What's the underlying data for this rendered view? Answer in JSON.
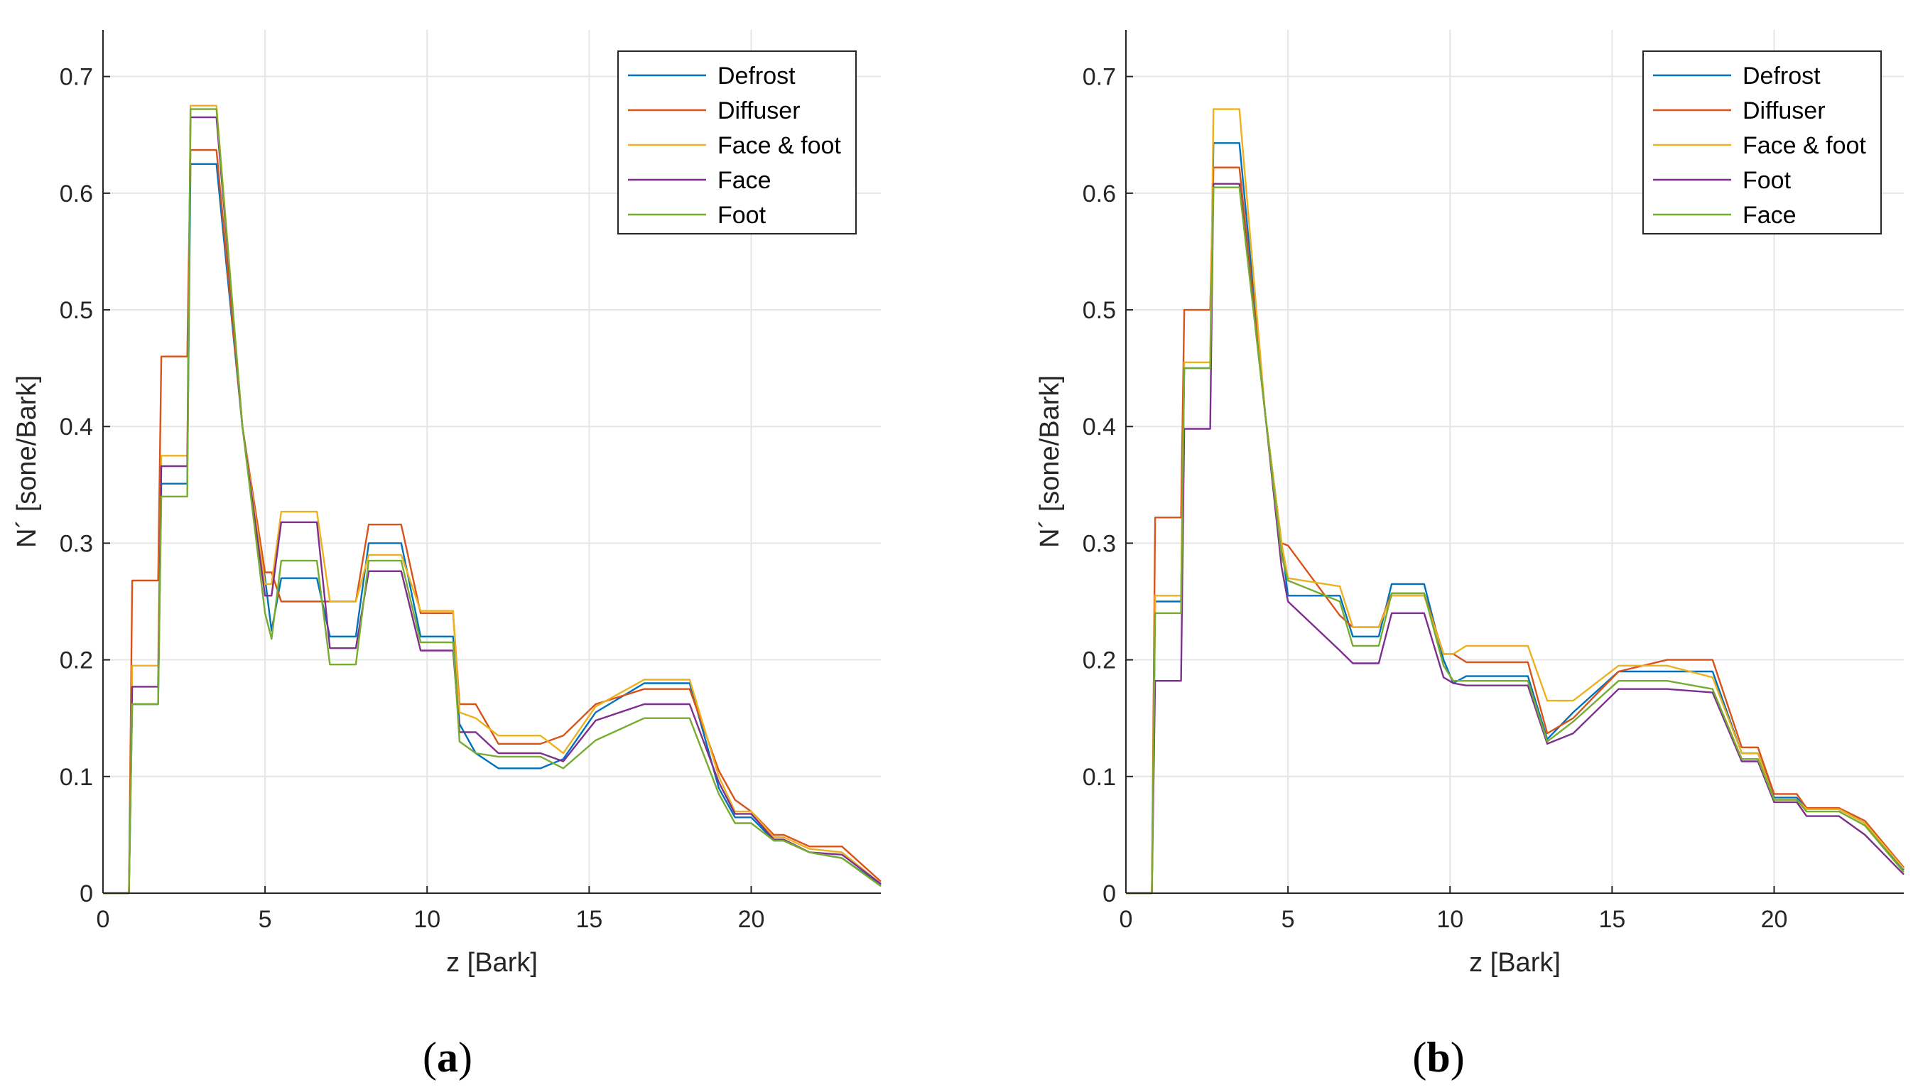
{
  "chart_data": [
    {
      "id": "a",
      "type": "line",
      "panel_label": "a",
      "xlabel": "z [Bark]",
      "ylabel": "N´ [sone/Bark]",
      "xlim": [
        0,
        24
      ],
      "ylim": [
        0,
        0.74
      ],
      "xticks": [
        "0",
        "5",
        "10",
        "15",
        "20"
      ],
      "yticks": [
        "0",
        "0.1",
        "0.2",
        "0.3",
        "0.4",
        "0.5",
        "0.6",
        "0.7"
      ],
      "grid": true,
      "legend_position": "top-right",
      "series": [
        {
          "name": "Defrost",
          "color": "#0072BD",
          "x": [
            0,
            0.8,
            0.9,
            1.7,
            1.8,
            2.6,
            2.7,
            3.5,
            4.3,
            5.0,
            5.2,
            5.5,
            6.6,
            7.0,
            7.8,
            8.2,
            9.2,
            9.8,
            10.8,
            11.0,
            11.5,
            12.2,
            13.5,
            14.2,
            15.2,
            16.7,
            18.1,
            19.0,
            19.5,
            20.0,
            20.7,
            21.0,
            21.8,
            22.8,
            24
          ],
          "y": [
            0,
            0,
            0.162,
            0.162,
            0.351,
            0.351,
            0.625,
            0.625,
            0.4,
            0.27,
            0.225,
            0.27,
            0.27,
            0.22,
            0.22,
            0.3,
            0.3,
            0.22,
            0.22,
            0.145,
            0.12,
            0.107,
            0.107,
            0.115,
            0.155,
            0.18,
            0.18,
            0.09,
            0.065,
            0.065,
            0.045,
            0.045,
            0.035,
            0.03,
            0.007
          ]
        },
        {
          "name": "Diffuser",
          "color": "#D95319",
          "x": [
            0,
            0.8,
            0.9,
            1.7,
            1.8,
            2.6,
            2.7,
            3.5,
            4.3,
            5.0,
            5.2,
            5.5,
            6.6,
            7.0,
            7.8,
            8.2,
            9.2,
            9.8,
            10.8,
            11.0,
            11.5,
            12.2,
            13.5,
            14.2,
            15.2,
            16.7,
            18.1,
            19.0,
            19.5,
            20.0,
            20.7,
            21.0,
            21.8,
            22.8,
            24
          ],
          "y": [
            0,
            0,
            0.268,
            0.268,
            0.46,
            0.46,
            0.637,
            0.637,
            0.4,
            0.275,
            0.275,
            0.25,
            0.25,
            0.25,
            0.25,
            0.316,
            0.316,
            0.24,
            0.24,
            0.162,
            0.162,
            0.128,
            0.128,
            0.135,
            0.162,
            0.175,
            0.175,
            0.105,
            0.08,
            0.07,
            0.05,
            0.05,
            0.04,
            0.04,
            0.01
          ]
        },
        {
          "name": "Face & foot",
          "color": "#EDB120",
          "x": [
            0,
            0.8,
            0.9,
            1.7,
            1.8,
            2.6,
            2.7,
            3.5,
            4.3,
            5.0,
            5.2,
            5.5,
            6.6,
            7.0,
            7.8,
            8.2,
            9.2,
            9.8,
            10.8,
            11.0,
            11.5,
            12.2,
            13.5,
            14.2,
            15.2,
            16.7,
            18.1,
            19.0,
            19.5,
            20.0,
            20.7,
            21.0,
            21.8,
            22.8,
            24
          ],
          "y": [
            0,
            0,
            0.195,
            0.195,
            0.375,
            0.375,
            0.675,
            0.675,
            0.4,
            0.265,
            0.265,
            0.327,
            0.327,
            0.25,
            0.25,
            0.29,
            0.29,
            0.242,
            0.242,
            0.155,
            0.15,
            0.135,
            0.135,
            0.12,
            0.16,
            0.183,
            0.183,
            0.1,
            0.07,
            0.07,
            0.048,
            0.048,
            0.038,
            0.035,
            0.008
          ]
        },
        {
          "name": "Face",
          "color": "#7E2F8E",
          "x": [
            0,
            0.8,
            0.9,
            1.7,
            1.8,
            2.6,
            2.7,
            3.5,
            4.3,
            5.0,
            5.2,
            5.5,
            6.6,
            7.0,
            7.8,
            8.2,
            9.2,
            9.8,
            10.8,
            11.0,
            11.5,
            12.2,
            13.5,
            14.2,
            15.2,
            16.7,
            18.1,
            19.0,
            19.5,
            20.0,
            20.7,
            21.0,
            21.8,
            22.8,
            24
          ],
          "y": [
            0,
            0,
            0.177,
            0.177,
            0.366,
            0.366,
            0.665,
            0.665,
            0.4,
            0.255,
            0.255,
            0.318,
            0.318,
            0.21,
            0.21,
            0.276,
            0.276,
            0.208,
            0.208,
            0.138,
            0.138,
            0.12,
            0.12,
            0.113,
            0.148,
            0.162,
            0.162,
            0.095,
            0.068,
            0.068,
            0.046,
            0.046,
            0.035,
            0.033,
            0.008
          ]
        },
        {
          "name": "Foot",
          "color": "#77AC30",
          "x": [
            0,
            0.8,
            0.9,
            1.7,
            1.8,
            2.6,
            2.7,
            3.5,
            4.3,
            5.0,
            5.2,
            5.5,
            6.6,
            7.0,
            7.8,
            8.2,
            9.2,
            9.8,
            10.8,
            11.0,
            11.5,
            12.2,
            13.5,
            14.2,
            15.2,
            16.7,
            18.1,
            19.0,
            19.5,
            20.0,
            20.7,
            21.0,
            21.8,
            22.8,
            24
          ],
          "y": [
            0,
            0,
            0.162,
            0.162,
            0.34,
            0.34,
            0.672,
            0.672,
            0.4,
            0.24,
            0.218,
            0.285,
            0.285,
            0.196,
            0.196,
            0.285,
            0.285,
            0.215,
            0.215,
            0.13,
            0.12,
            0.117,
            0.117,
            0.107,
            0.131,
            0.15,
            0.15,
            0.085,
            0.06,
            0.06,
            0.045,
            0.045,
            0.035,
            0.03,
            0.006
          ]
        }
      ]
    },
    {
      "id": "b",
      "type": "line",
      "panel_label": "b",
      "xlabel": "z [Bark]",
      "ylabel": "N´ [sone/Bark]",
      "xlim": [
        0,
        24
      ],
      "ylim": [
        0,
        0.74
      ],
      "xticks": [
        "0",
        "5",
        "10",
        "15",
        "20"
      ],
      "yticks": [
        "0",
        "0.1",
        "0.2",
        "0.3",
        "0.4",
        "0.5",
        "0.6",
        "0.7"
      ],
      "grid": true,
      "legend_position": "top-right",
      "series": [
        {
          "name": "Defrost",
          "color": "#0072BD",
          "x": [
            0,
            0.8,
            0.9,
            1.7,
            1.8,
            2.6,
            2.7,
            3.5,
            4.3,
            4.8,
            5.0,
            6.6,
            7.0,
            7.8,
            8.2,
            9.2,
            9.8,
            10.1,
            10.5,
            12.4,
            13.0,
            13.8,
            15.2,
            16.7,
            18.1,
            19.0,
            19.5,
            20.0,
            20.7,
            21.0,
            22.0,
            22.8,
            24
          ],
          "y": [
            0,
            0,
            0.25,
            0.25,
            0.45,
            0.45,
            0.643,
            0.643,
            0.41,
            0.3,
            0.255,
            0.255,
            0.22,
            0.22,
            0.265,
            0.265,
            0.2,
            0.18,
            0.186,
            0.186,
            0.132,
            0.155,
            0.19,
            0.19,
            0.19,
            0.12,
            0.12,
            0.082,
            0.082,
            0.072,
            0.072,
            0.06,
            0.02
          ]
        },
        {
          "name": "Diffuser",
          "color": "#D95319",
          "x": [
            0,
            0.8,
            0.9,
            1.7,
            1.8,
            2.6,
            2.7,
            3.5,
            4.3,
            4.8,
            5.0,
            6.6,
            7.0,
            7.8,
            8.2,
            9.2,
            9.8,
            10.1,
            10.5,
            12.4,
            13.0,
            13.8,
            15.2,
            16.7,
            18.1,
            19.0,
            19.5,
            20.0,
            20.7,
            21.0,
            22.0,
            22.8,
            24
          ],
          "y": [
            0,
            0,
            0.322,
            0.322,
            0.5,
            0.5,
            0.622,
            0.622,
            0.41,
            0.3,
            0.298,
            0.238,
            0.228,
            0.228,
            0.257,
            0.257,
            0.205,
            0.205,
            0.198,
            0.198,
            0.137,
            0.15,
            0.19,
            0.2,
            0.2,
            0.125,
            0.125,
            0.085,
            0.085,
            0.073,
            0.073,
            0.062,
            0.022
          ]
        },
        {
          "name": "Face & foot",
          "color": "#EDB120",
          "x": [
            0,
            0.8,
            0.9,
            1.7,
            1.8,
            2.6,
            2.7,
            3.5,
            4.3,
            4.8,
            5.0,
            6.6,
            7.0,
            7.8,
            8.2,
            9.2,
            9.8,
            10.1,
            10.5,
            12.4,
            13.0,
            13.8,
            15.2,
            16.7,
            18.1,
            19.0,
            19.5,
            20.0,
            20.7,
            21.0,
            22.0,
            22.8,
            24
          ],
          "y": [
            0,
            0,
            0.255,
            0.255,
            0.455,
            0.455,
            0.672,
            0.672,
            0.41,
            0.3,
            0.27,
            0.263,
            0.228,
            0.228,
            0.255,
            0.255,
            0.205,
            0.205,
            0.212,
            0.212,
            0.165,
            0.165,
            0.195,
            0.195,
            0.185,
            0.12,
            0.12,
            0.08,
            0.08,
            0.072,
            0.072,
            0.06,
            0.021
          ]
        },
        {
          "name": "Foot",
          "color": "#7E2F8E",
          "x": [
            0,
            0.8,
            0.9,
            1.7,
            1.8,
            2.6,
            2.7,
            3.5,
            4.3,
            4.8,
            5.0,
            6.6,
            7.0,
            7.8,
            8.2,
            9.2,
            9.8,
            10.1,
            10.5,
            12.4,
            13.0,
            13.8,
            15.2,
            16.7,
            18.1,
            19.0,
            19.5,
            20.0,
            20.7,
            21.0,
            22.0,
            22.8,
            24
          ],
          "y": [
            0,
            0,
            0.182,
            0.182,
            0.398,
            0.398,
            0.608,
            0.608,
            0.41,
            0.28,
            0.25,
            0.208,
            0.197,
            0.197,
            0.24,
            0.24,
            0.185,
            0.18,
            0.178,
            0.178,
            0.128,
            0.137,
            0.175,
            0.175,
            0.172,
            0.113,
            0.113,
            0.078,
            0.078,
            0.066,
            0.066,
            0.05,
            0.016
          ]
        },
        {
          "name": "Face",
          "color": "#77AC30",
          "x": [
            0,
            0.8,
            0.9,
            1.7,
            1.8,
            2.6,
            2.7,
            3.5,
            4.3,
            4.8,
            5.0,
            6.6,
            7.0,
            7.8,
            8.2,
            9.2,
            9.8,
            10.1,
            10.5,
            12.4,
            13.0,
            13.8,
            15.2,
            16.7,
            18.1,
            19.0,
            19.5,
            20.0,
            20.7,
            21.0,
            22.0,
            22.8,
            24
          ],
          "y": [
            0,
            0,
            0.24,
            0.24,
            0.45,
            0.45,
            0.605,
            0.605,
            0.41,
            0.29,
            0.268,
            0.25,
            0.212,
            0.212,
            0.257,
            0.257,
            0.195,
            0.182,
            0.182,
            0.182,
            0.13,
            0.147,
            0.182,
            0.182,
            0.175,
            0.115,
            0.115,
            0.08,
            0.08,
            0.07,
            0.07,
            0.058,
            0.018
          ]
        }
      ]
    }
  ]
}
